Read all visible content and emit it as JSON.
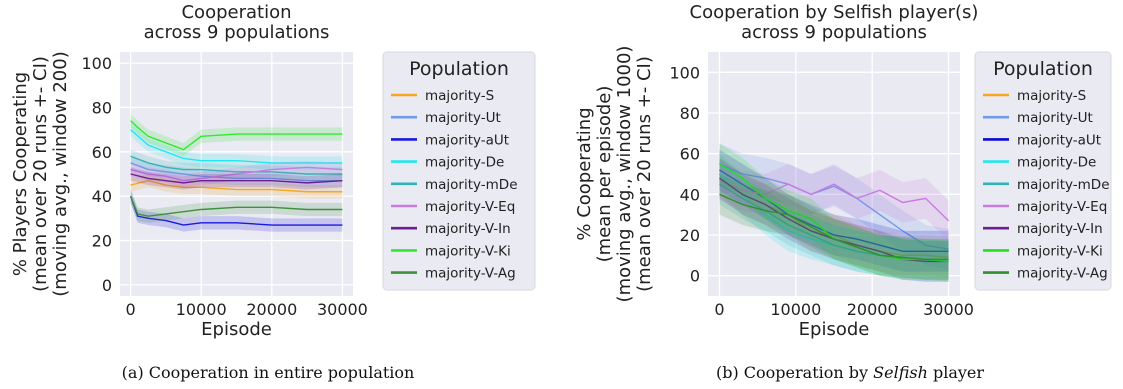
{
  "chart_data": [
    {
      "type": "line",
      "title": "Cooperation\nacross 9 populations",
      "ylabel": "% Players Cooperating\n(mean over 20 runs +- CI)\n(moving avg., window 200)",
      "xlabel": "Episode",
      "xlim": [
        -1500,
        31500
      ],
      "ylim": [
        -5,
        105
      ],
      "xticks": [
        0,
        10000,
        20000,
        30000
      ],
      "yticks": [
        0,
        20,
        40,
        60,
        80,
        100
      ],
      "grid": true,
      "legend": {
        "title": "Population",
        "placement": "outside-right"
      },
      "caption": "(a) Cooperation in entire population",
      "series": [
        {
          "name": "majority-S",
          "color": "#f5a623",
          "x": [
            0,
            2500,
            5000,
            7500,
            10000,
            15000,
            20000,
            25000,
            30000
          ],
          "values": [
            45,
            47,
            45,
            44,
            44,
            43,
            43,
            42,
            42
          ]
        },
        {
          "name": "majority-Ut",
          "color": "#6f9be8",
          "x": [
            0,
            2500,
            5000,
            7500,
            10000,
            15000,
            20000,
            25000,
            30000
          ],
          "values": [
            55,
            52,
            51,
            50,
            49,
            48,
            48,
            47,
            47
          ]
        },
        {
          "name": "majority-aUt",
          "color": "#1a1adb",
          "x": [
            0,
            1000,
            2500,
            5000,
            7500,
            10000,
            15000,
            20000,
            25000,
            30000
          ],
          "values": [
            40,
            31,
            30,
            29,
            27,
            28,
            28,
            27,
            27,
            27
          ]
        },
        {
          "name": "majority-De",
          "color": "#22e8ee",
          "x": [
            0,
            2500,
            5000,
            7500,
            10000,
            15000,
            20000,
            25000,
            30000
          ],
          "values": [
            70,
            63,
            60,
            57,
            56,
            56,
            55,
            55,
            55
          ]
        },
        {
          "name": "majority-mDe",
          "color": "#2fb5b5",
          "x": [
            0,
            2500,
            5000,
            7500,
            10000,
            15000,
            20000,
            25000,
            30000
          ],
          "values": [
            58,
            55,
            53,
            52,
            52,
            51,
            51,
            50,
            50
          ]
        },
        {
          "name": "majority-V-Eq",
          "color": "#c77be0",
          "x": [
            0,
            2500,
            5000,
            7500,
            10000,
            15000,
            20000,
            25000,
            30000
          ],
          "values": [
            52,
            50,
            49,
            47,
            48,
            50,
            52,
            53,
            52
          ]
        },
        {
          "name": "majority-V-In",
          "color": "#6e1f8f",
          "x": [
            0,
            2500,
            5000,
            7500,
            10000,
            15000,
            20000,
            25000,
            30000
          ],
          "values": [
            50,
            48,
            47,
            46,
            47,
            47,
            47,
            46,
            47
          ]
        },
        {
          "name": "majority-V-Ki",
          "color": "#33e833",
          "x": [
            0,
            1000,
            2500,
            5000,
            7500,
            10000,
            15000,
            20000,
            25000,
            30000
          ],
          "values": [
            74,
            71,
            67,
            64,
            61,
            67,
            68,
            68,
            68,
            68
          ]
        },
        {
          "name": "majority-V-Ag",
          "color": "#3f8f3f",
          "x": [
            0,
            1000,
            2500,
            5000,
            7500,
            10000,
            15000,
            20000,
            25000,
            30000
          ],
          "values": [
            40,
            32,
            31,
            32,
            33,
            34,
            35,
            35,
            34,
            34
          ]
        }
      ]
    },
    {
      "type": "line",
      "title": "Cooperation by Selfish player(s)\nacross 9 populations",
      "ylabel": "% Cooperating\n(mean per episode)\n(moving avg., window 1000)\n(mean over 20 runs +- CI)",
      "xlabel": "Episode",
      "xlim": [
        -1500,
        31500
      ],
      "ylim": [
        -10,
        110
      ],
      "xticks": [
        0,
        10000,
        20000,
        30000
      ],
      "yticks": [
        0,
        20,
        40,
        60,
        80,
        100
      ],
      "grid": true,
      "legend": {
        "title": "Population",
        "placement": "outside-right"
      },
      "caption_prefix": "(b) Cooperation by ",
      "caption_emph": "Selfish",
      "caption_suffix": " player",
      "series": [
        {
          "name": "majority-S",
          "color": "#f5a623",
          "x": [
            0,
            3000,
            6000,
            9000,
            12000,
            15000,
            18000,
            21000,
            24000,
            27000,
            30000
          ],
          "values": [
            50,
            40,
            35,
            30,
            22,
            20,
            15,
            12,
            10,
            10,
            9
          ]
        },
        {
          "name": "majority-Ut",
          "color": "#6f9be8",
          "x": [
            0,
            3000,
            6000,
            9000,
            12000,
            15000,
            18000,
            21000,
            24000,
            27000,
            30000
          ],
          "values": [
            55,
            50,
            48,
            45,
            40,
            44,
            38,
            30,
            22,
            15,
            13
          ]
        },
        {
          "name": "majority-aUt",
          "color": "#0a0ad0",
          "x": [
            0,
            3000,
            6000,
            9000,
            12000,
            15000,
            18000,
            21000,
            24000,
            27000,
            30000
          ],
          "values": [
            52,
            45,
            38,
            30,
            25,
            20,
            18,
            15,
            12,
            12,
            12
          ]
        },
        {
          "name": "majority-De",
          "color": "#22e8ee",
          "x": [
            0,
            3000,
            6000,
            9000,
            12000,
            15000,
            18000,
            21000,
            24000,
            27000,
            30000
          ],
          "values": [
            50,
            40,
            30,
            22,
            18,
            15,
            12,
            10,
            8,
            7,
            7
          ]
        },
        {
          "name": "majority-mDe",
          "color": "#2fb5b5",
          "x": [
            0,
            3000,
            6000,
            9000,
            12000,
            15000,
            18000,
            21000,
            24000,
            27000,
            30000
          ],
          "values": [
            45,
            38,
            32,
            25,
            20,
            15,
            12,
            10,
            9,
            8,
            8
          ]
        },
        {
          "name": "majority-V-Eq",
          "color": "#c77be0",
          "x": [
            0,
            3000,
            6000,
            9000,
            12000,
            15000,
            18000,
            21000,
            24000,
            27000,
            30000
          ],
          "values": [
            47,
            42,
            40,
            45,
            40,
            45,
            38,
            42,
            36,
            38,
            27
          ]
        },
        {
          "name": "majority-V-In",
          "color": "#6e1f8f",
          "x": [
            0,
            3000,
            6000,
            9000,
            12000,
            15000,
            18000,
            21000,
            24000,
            27000,
            30000
          ],
          "values": [
            48,
            40,
            35,
            28,
            22,
            18,
            15,
            12,
            8,
            7,
            7
          ]
        },
        {
          "name": "majority-V-Ki",
          "color": "#22e022",
          "x": [
            0,
            3000,
            6000,
            9000,
            12000,
            15000,
            18000,
            21000,
            24000,
            27000,
            30000
          ],
          "values": [
            55,
            48,
            38,
            32,
            28,
            18,
            14,
            10,
            8,
            8,
            7
          ]
        },
        {
          "name": "majority-V-Ag",
          "color": "#2f8f2f",
          "x": [
            0,
            3000,
            6000,
            9000,
            12000,
            15000,
            18000,
            21000,
            24000,
            27000,
            30000
          ],
          "values": [
            40,
            35,
            32,
            30,
            24,
            18,
            14,
            10,
            9,
            8,
            8
          ]
        }
      ]
    }
  ]
}
